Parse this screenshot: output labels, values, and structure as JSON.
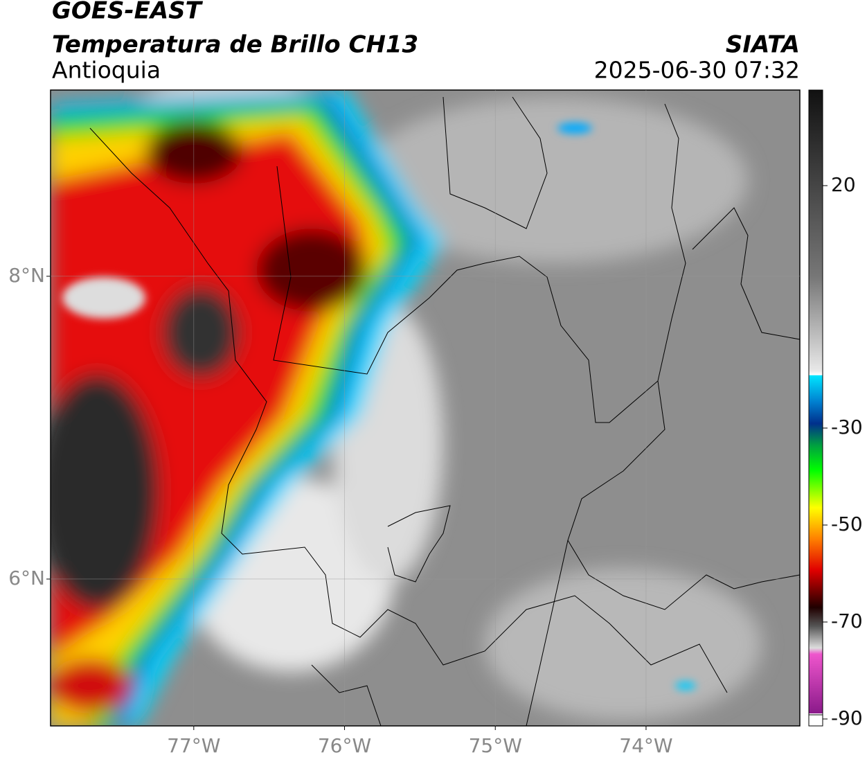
{
  "header": {
    "title": "GOES-EAST",
    "subtitle": "Temperatura de Brillo CH13",
    "region": "Antioquia",
    "source": "SIATA",
    "datetime": "2025-06-30 07:32"
  },
  "map": {
    "lon_lim": [
      -77.95,
      -72.98
    ],
    "lat_lim": [
      5.03,
      9.23
    ],
    "lon_ticks": [
      {
        "value": -77,
        "label": "77°W"
      },
      {
        "value": -76,
        "label": "76°W"
      },
      {
        "value": -75,
        "label": "75°W"
      },
      {
        "value": -74,
        "label": "74°W"
      }
    ],
    "lat_ticks": [
      {
        "value": 8,
        "label": "8°N"
      },
      {
        "value": 6,
        "label": "6°N"
      }
    ],
    "grid": true
  },
  "colorbar": {
    "lim": [
      -90,
      40
    ],
    "ticks": [
      20,
      -30,
      -50,
      -70,
      -90
    ]
  }
}
